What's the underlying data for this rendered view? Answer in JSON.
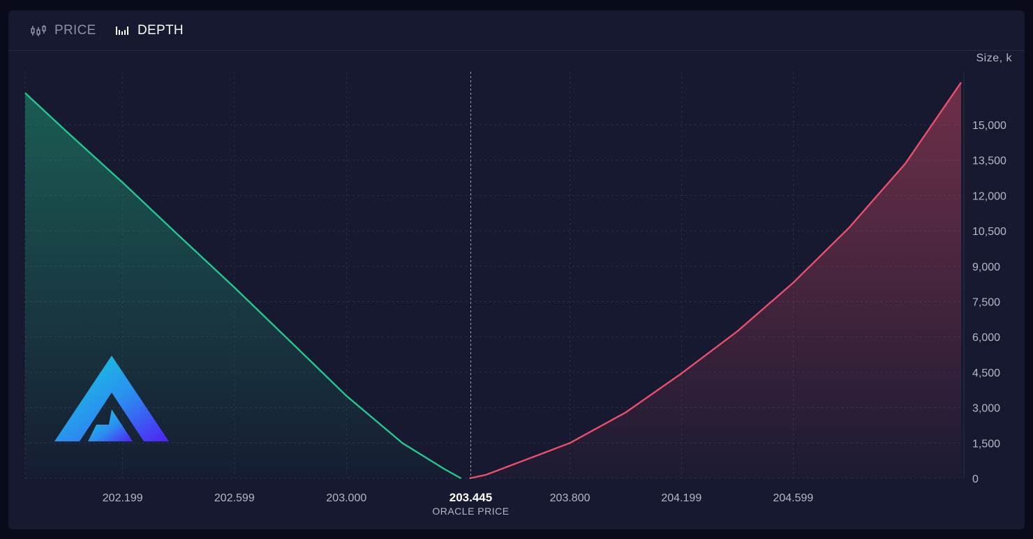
{
  "tabs": [
    {
      "label": "PRICE",
      "icon": "candlestick-icon",
      "active": false
    },
    {
      "label": "DEPTH",
      "icon": "bar-chart-icon",
      "active": true
    }
  ],
  "colors": {
    "bid": "#22c98d",
    "ask": "#ea4f6b",
    "grid": "#2a2e4a",
    "axis_text": "#b6b8c8",
    "oracle_line": "#9a9cb2"
  },
  "chart_data": {
    "type": "area",
    "title": "",
    "xlabel": "",
    "ylabel": "Size, k",
    "xlim": [
      201.85,
      205.21
    ],
    "ylim": [
      0,
      17250
    ],
    "x_ticks": [
      202.199,
      202.599,
      203.0,
      203.8,
      204.199,
      204.599
    ],
    "x_tick_labels": [
      "202.199",
      "202.599",
      "203.000",
      "203.800",
      "204.199",
      "204.599"
    ],
    "y_ticks": [
      0,
      1500,
      3000,
      4500,
      6000,
      7500,
      9000,
      10500,
      12000,
      13500,
      15000
    ],
    "y_tick_labels": [
      "0",
      "1,500",
      "3,000",
      "4,500",
      "6,000",
      "7,500",
      "9,000",
      "10,500",
      "12,000",
      "13,500",
      "15,000"
    ],
    "oracle": {
      "value": 203.445,
      "label": "203.445",
      "caption": "ORACLE PRICE"
    },
    "grid": true,
    "series": [
      {
        "side": "bid",
        "x": [
          201.85,
          202.0,
          202.199,
          202.4,
          202.599,
          202.8,
          203.0,
          203.2,
          203.35,
          203.41
        ],
        "values": [
          16350,
          14700,
          12550,
          10300,
          8100,
          5800,
          3500,
          1500,
          400,
          0
        ]
      },
      {
        "side": "ask",
        "x": [
          203.44,
          203.5,
          203.8,
          204.0,
          204.199,
          204.4,
          204.599,
          204.8,
          205.0,
          205.2
        ],
        "values": [
          0,
          150,
          1500,
          2800,
          4450,
          6250,
          8300,
          10650,
          13350,
          16800
        ]
      }
    ]
  }
}
